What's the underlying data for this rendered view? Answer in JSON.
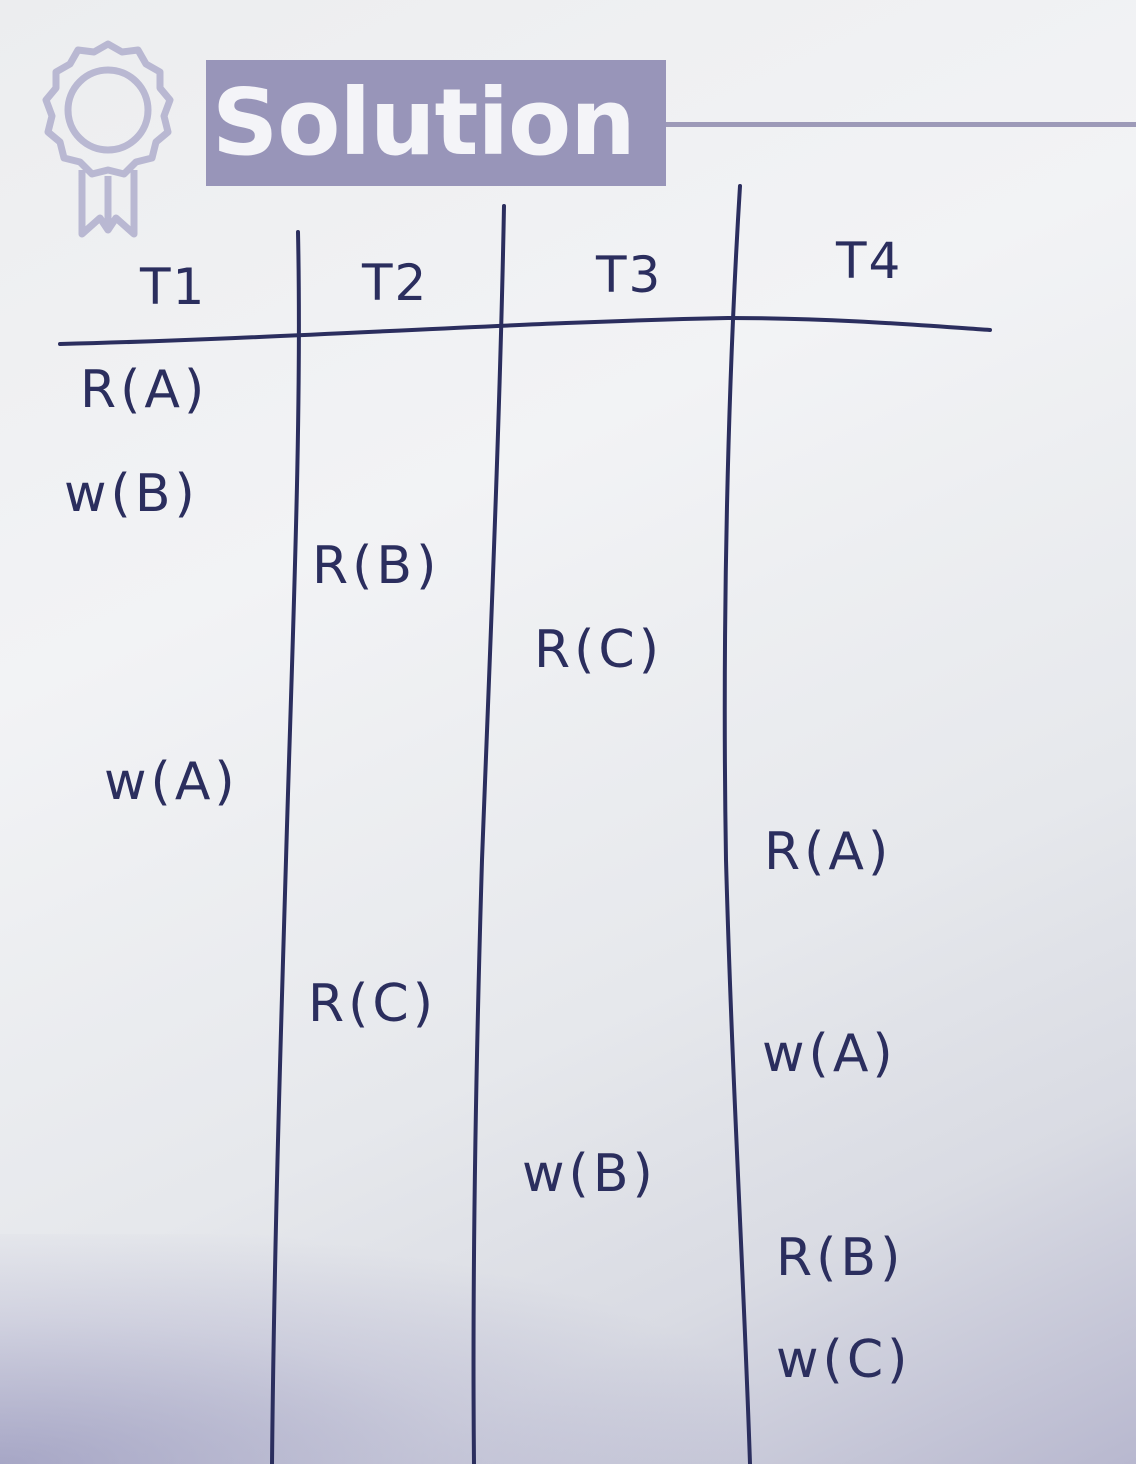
{
  "heading": {
    "title": "Solution",
    "icon": "award-ribbon-icon"
  },
  "table": {
    "headers": [
      "T1",
      "T2",
      "T3",
      "T4"
    ],
    "operations": [
      {
        "tx": "T1",
        "op": "R(A)"
      },
      {
        "tx": "T1",
        "op": "w(B)"
      },
      {
        "tx": "T2",
        "op": "R(B)"
      },
      {
        "tx": "T3",
        "op": "R(C)"
      },
      {
        "tx": "T1",
        "op": "w(A)"
      },
      {
        "tx": "T4",
        "op": "R(A)"
      },
      {
        "tx": "T2",
        "op": "R(C)"
      },
      {
        "tx": "T4",
        "op": "w(A)"
      },
      {
        "tx": "T3",
        "op": "w(B)"
      },
      {
        "tx": "T4",
        "op": "R(B)"
      },
      {
        "tx": "T4",
        "op": "w(C)"
      }
    ]
  },
  "colors": {
    "ink": "#2b2e5e",
    "title_bg": "#9895b9",
    "title_text": "#f4f4f8",
    "icon": "#b9b8d2"
  }
}
